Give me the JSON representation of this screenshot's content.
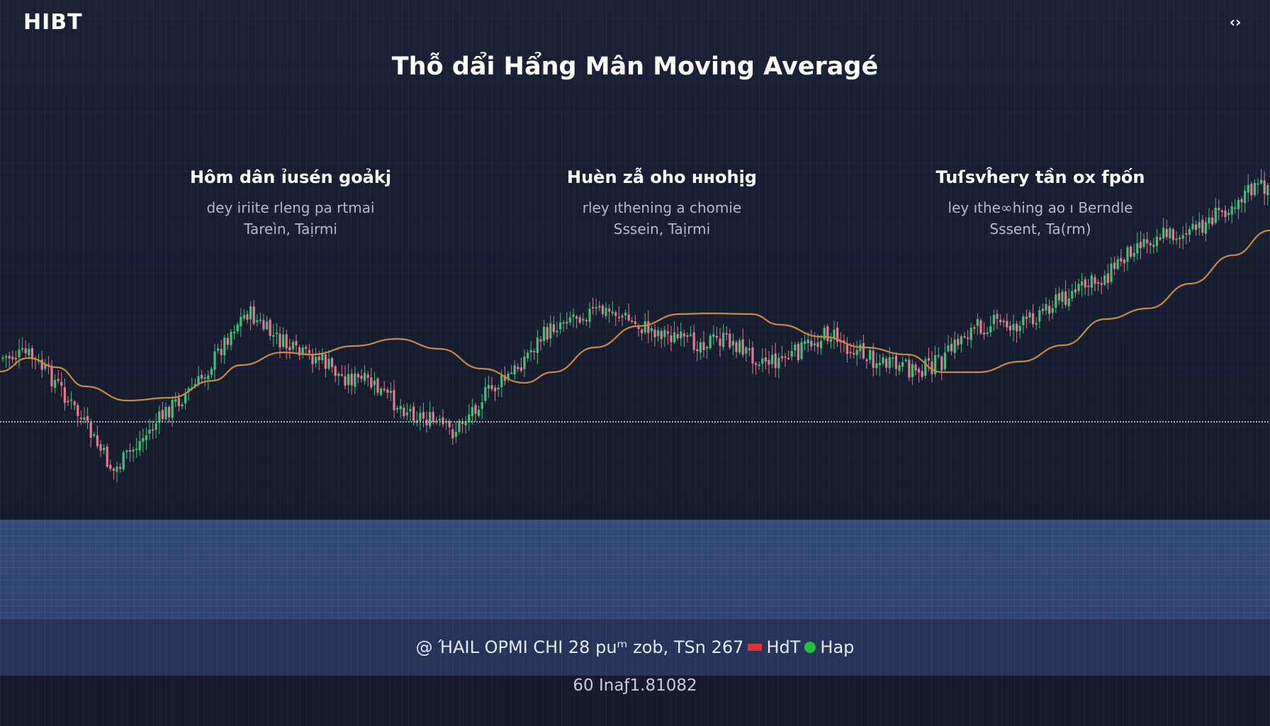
{
  "logo": "HIBT",
  "corner_icon": "expand-arrows-icon",
  "corner_glyph": "‹›",
  "title": "Thỗ dẩi Hẩng Mân Moving Averagé",
  "annotations": [
    {
      "heading": "Hôm dân ỉusén goảkj",
      "line1": "dey iriite rleng pa rtmai",
      "line2": "Tareìn, Taịrmi"
    },
    {
      "heading": "Huèn zẫ oho нноhịg",
      "line1": "rley ıthening a chomie",
      "line2": "Sssein, Taịrmi"
    },
    {
      "heading": "Tuſsvĥery tần ox fpốn",
      "line1": "ley ıthe∞hing ao ı Berndle",
      "line2": "Sssent, Ta(rm)"
    }
  ],
  "status": {
    "text_main": "@ ΉAIL OPMI CHI 28 puᵐ zob, TSn 267",
    "red_label": "HdT",
    "green_label": "Hap"
  },
  "footer": "60 Inaƒ1.81082",
  "colors": {
    "up": "#3ec27a",
    "down": "#e07a92",
    "ma": "#c88a3e",
    "baseline": "#c9ccd4"
  },
  "chart_data": {
    "type": "line",
    "description_series": [
      "price",
      "moving-average"
    ],
    "price_anchors": [
      [
        0,
        505
      ],
      [
        40,
        500
      ],
      [
        80,
        540
      ],
      [
        120,
        600
      ],
      [
        160,
        665
      ],
      [
        200,
        620
      ],
      [
        240,
        575
      ],
      [
        280,
        540
      ],
      [
        300,
        510
      ],
      [
        330,
        460
      ],
      [
        350,
        440
      ],
      [
        380,
        470
      ],
      [
        420,
        500
      ],
      [
        450,
        505
      ],
      [
        480,
        530
      ],
      [
        520,
        540
      ],
      [
        560,
        570
      ],
      [
        600,
        590
      ],
      [
        640,
        610
      ],
      [
        680,
        560
      ],
      [
        720,
        530
      ],
      [
        760,
        480
      ],
      [
        800,
        445
      ],
      [
        840,
        440
      ],
      [
        870,
        440
      ],
      [
        900,
        460
      ],
      [
        940,
        470
      ],
      [
        970,
        485
      ],
      [
        1000,
        480
      ],
      [
        1030,
        480
      ],
      [
        1060,
        500
      ],
      [
        1090,
        510
      ],
      [
        1120,
        500
      ],
      [
        1150,
        480
      ],
      [
        1170,
        470
      ],
      [
        1200,
        490
      ],
      [
        1240,
        510
      ],
      [
        1270,
        520
      ],
      [
        1300,
        520
      ],
      [
        1330,
        510
      ],
      [
        1360,
        470
      ],
      [
        1400,
        455
      ],
      [
        1440,
        460
      ],
      [
        1480,
        430
      ],
      [
        1520,
        410
      ],
      [
        1560,
        390
      ],
      [
        1600,
        345
      ],
      [
        1640,
        330
      ],
      [
        1680,
        330
      ],
      [
        1720,
        300
      ],
      [
        1760,
        270
      ],
      [
        1792,
        260
      ]
    ],
    "ma_anchors": [
      [
        0,
        524
      ],
      [
        40,
        505
      ],
      [
        80,
        518
      ],
      [
        120,
        545
      ],
      [
        180,
        565
      ],
      [
        240,
        561
      ],
      [
        300,
        537
      ],
      [
        340,
        515
      ],
      [
        400,
        497
      ],
      [
        440,
        500
      ],
      [
        500,
        488
      ],
      [
        560,
        478
      ],
      [
        620,
        492
      ],
      [
        680,
        520
      ],
      [
        740,
        540
      ],
      [
        780,
        525
      ],
      [
        840,
        490
      ],
      [
        900,
        460
      ],
      [
        960,
        443
      ],
      [
        1000,
        442
      ],
      [
        1060,
        443
      ],
      [
        1100,
        458
      ],
      [
        1160,
        475
      ],
      [
        1220,
        490
      ],
      [
        1280,
        500
      ],
      [
        1330,
        525
      ],
      [
        1380,
        525
      ],
      [
        1440,
        510
      ],
      [
        1500,
        487
      ],
      [
        1560,
        450
      ],
      [
        1620,
        435
      ],
      [
        1680,
        400
      ],
      [
        1740,
        360
      ],
      [
        1792,
        325
      ]
    ],
    "baseline": 595,
    "ylim": [
      250,
      700
    ]
  }
}
